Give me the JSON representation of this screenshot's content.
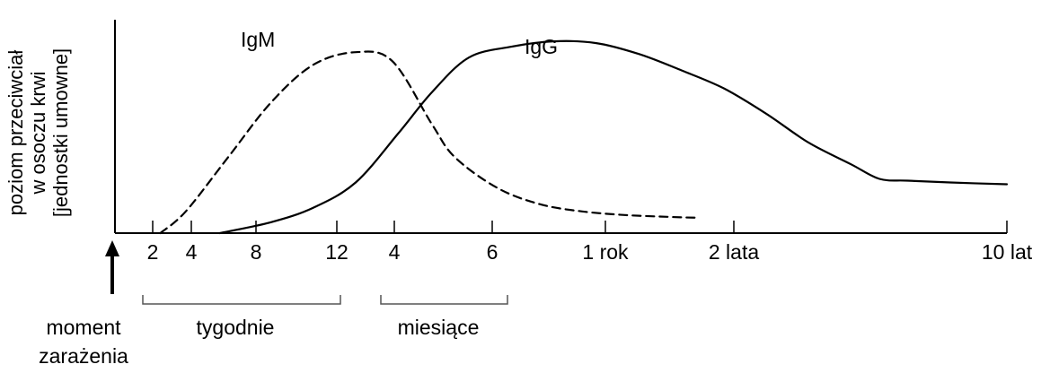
{
  "chart_data": {
    "type": "line",
    "ylabel_lines": [
      "poziom przeciwciał",
      "w osoczu krwi",
      "[jednostki umowne]"
    ],
    "x_tick_labels": [
      "2",
      "4",
      "8",
      "12",
      "4",
      "6",
      "1 rok",
      "2 lata",
      "10 lat"
    ],
    "groups": [
      "tygodnie",
      "miesiące"
    ],
    "infection_label_lines": [
      "moment",
      "zarażenia"
    ],
    "series": [
      {
        "name": "IgM",
        "style": "dashed",
        "points": [
          [
            1.6,
            0.0
          ],
          [
            2.5,
            0.12
          ],
          [
            4.0,
            0.42
          ],
          [
            5.5,
            0.72
          ],
          [
            7.0,
            0.93
          ],
          [
            8.5,
            1.0
          ],
          [
            9.8,
            0.95
          ],
          [
            11.2,
            0.6
          ],
          [
            12.0,
            0.42
          ],
          [
            13.5,
            0.25
          ],
          [
            15.0,
            0.16
          ],
          [
            16.5,
            0.12
          ],
          [
            18.0,
            0.1
          ],
          [
            19.5,
            0.09
          ],
          [
            20.5,
            0.085
          ]
        ]
      },
      {
        "name": "IgG",
        "style": "solid",
        "points": [
          [
            3.7,
            0.0
          ],
          [
            5.5,
            0.06
          ],
          [
            7.0,
            0.14
          ],
          [
            8.5,
            0.28
          ],
          [
            10.0,
            0.55
          ],
          [
            11.2,
            0.78
          ],
          [
            12.5,
            0.97
          ],
          [
            14.0,
            1.03
          ],
          [
            15.5,
            1.06
          ],
          [
            17.0,
            1.05
          ],
          [
            18.5,
            0.99
          ],
          [
            20.0,
            0.9
          ],
          [
            21.5,
            0.8
          ],
          [
            23.0,
            0.66
          ],
          [
            24.5,
            0.5
          ],
          [
            26.0,
            0.38
          ],
          [
            27.0,
            0.3
          ],
          [
            28.0,
            0.29
          ],
          [
            29.5,
            0.28
          ],
          [
            31.5,
            0.27
          ]
        ]
      }
    ],
    "ylim": [
      0,
      1.1
    ]
  }
}
